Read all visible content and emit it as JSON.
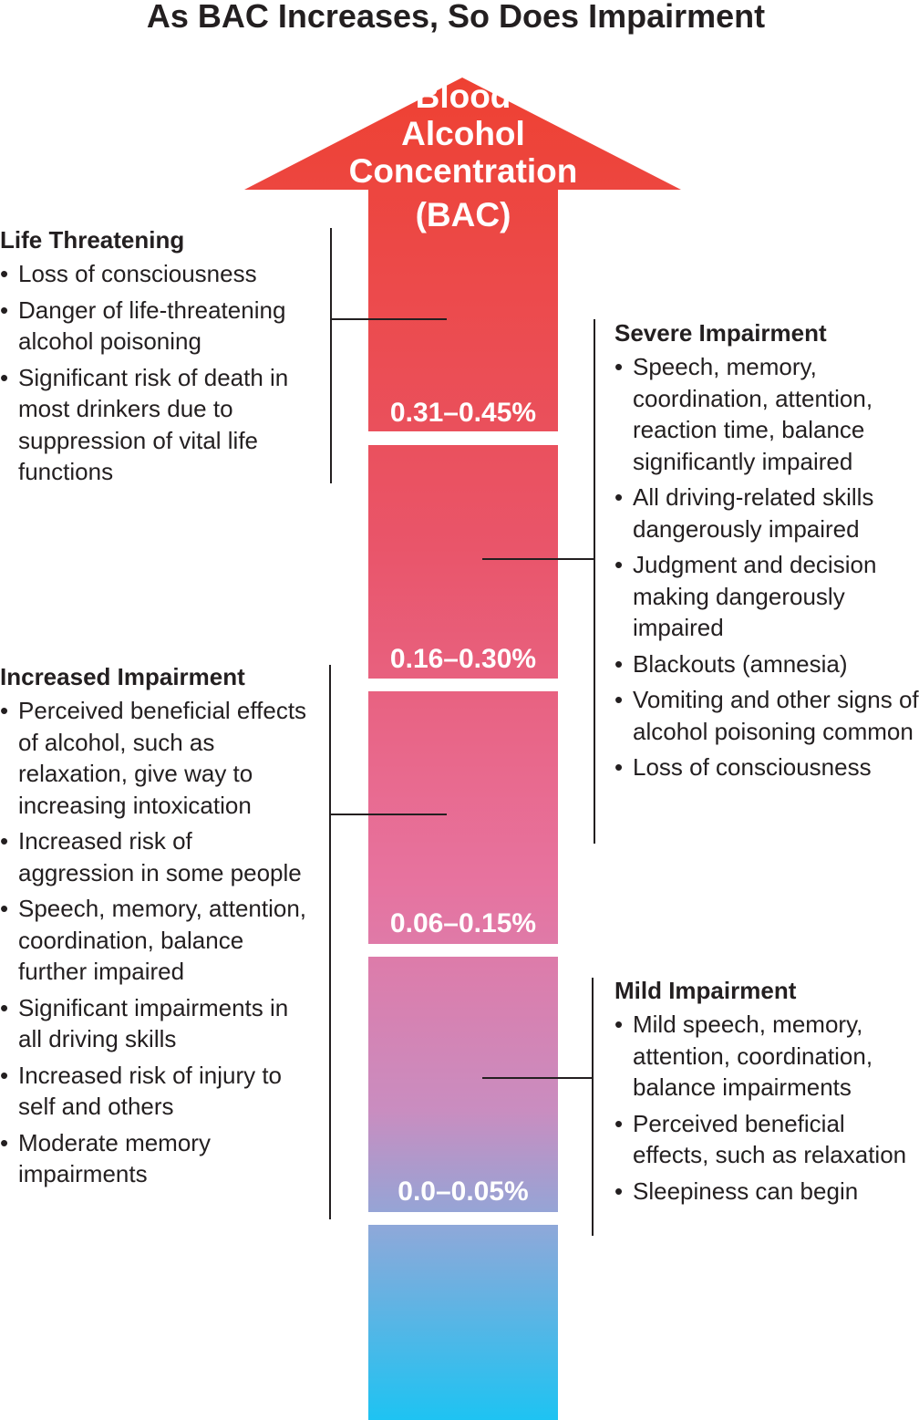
{
  "title": "As BAC Increases, So Does Impairment",
  "arrow": {
    "label_lines": [
      "Blood",
      "Alcohol",
      "Concentration",
      "(BAC)"
    ],
    "gradient_colors": [
      "#ee4132",
      "#e9556a",
      "#e7739f",
      "#c98dc0",
      "#8ba9da",
      "#1ec3f2"
    ]
  },
  "ranges": [
    {
      "label": "0.31–0.45%"
    },
    {
      "label": "0.16–0.30%"
    },
    {
      "label": "0.06–0.15%"
    },
    {
      "label": "0.0–0.05%"
    }
  ],
  "groups": {
    "life_threatening": {
      "heading": "Life Threatening",
      "items": [
        "Loss of consciousness",
        "Danger of life-threatening alcohol poisoning",
        "Significant risk of death in most drinkers due to suppression of vital life functions"
      ]
    },
    "severe": {
      "heading": "Severe Impairment",
      "items": [
        "Speech, memory, coordination, attention, reaction time, balance significantly impaired",
        "All driving-related skills dangerously impaired",
        "Judgment and decision making dangerously impaired",
        "Blackouts (amnesia)",
        "Vomiting and other signs of alcohol poisoning common",
        "Loss of consciousness"
      ]
    },
    "increased": {
      "heading": "Increased Impairment",
      "items": [
        "Perceived beneficial effects of alcohol, such as relaxation, give way to increasing intoxication",
        "Increased risk of aggression in some people",
        "Speech, memory, attention, coordination, balance further impaired",
        "Significant impairments in all driving skills",
        "Increased risk of injury to self and others",
        "Moderate memory impairments"
      ]
    },
    "mild": {
      "heading": "Mild Impairment",
      "items": [
        "Mild speech, memory, attention, coordination, balance impairments",
        "Perceived beneficial effects, such as relaxation",
        "Sleepiness can begin"
      ]
    }
  }
}
